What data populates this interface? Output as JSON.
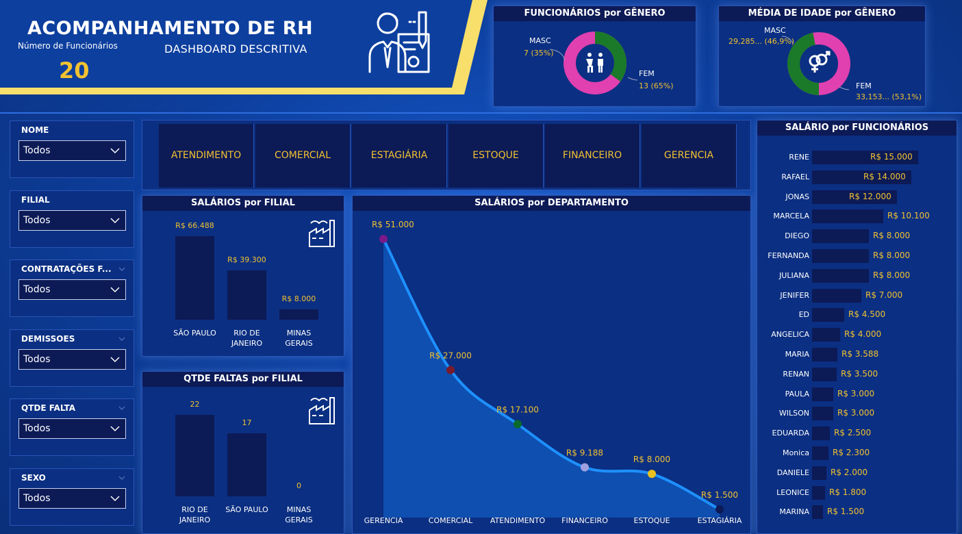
{
  "header": {
    "title": "ACOMPANHAMENTO DE RH",
    "subtitle": "DASHBOARD DESCRITIVA",
    "kpi_label": "Número de Funcionários",
    "kpi_value": "20"
  },
  "gender_count": {
    "title": "FUNCIONÁRIOS por GÊNERO",
    "masc_label": "MASC",
    "masc_value": "7 (35%)",
    "fem_label": "FEM",
    "fem_value": "13 (65%)",
    "masc_share": 0.35,
    "fem_share": 0.65
  },
  "age_gender": {
    "title": "MÉDIA DE IDADE por GÊNERO",
    "masc_label": "MASC",
    "masc_value": "29,285... (46,9%)",
    "fem_label": "FEM",
    "fem_value": "33,153... (53,1%)",
    "masc_share": 0.469,
    "fem_share": 0.531
  },
  "filters": [
    {
      "label": "NOME",
      "value": "Todos",
      "has_chevron": false
    },
    {
      "label": "FILIAL",
      "value": "Todos",
      "has_chevron": false
    },
    {
      "label": "CONTRATAÇÕES F...",
      "value": "Todos",
      "has_chevron": true
    },
    {
      "label": "DEMISSOES",
      "value": "Todos",
      "has_chevron": true
    },
    {
      "label": "QTDE FALTA",
      "value": "Todos",
      "has_chevron": true
    },
    {
      "label": "SEXO",
      "value": "Todos",
      "has_chevron": true
    }
  ],
  "departments": [
    "ATENDIMENTO",
    "COMERCIAL",
    "ESTAGIÁRIA",
    "ESTOQUE",
    "FINANCEIRO",
    "GERENCIA"
  ],
  "colors": {
    "masc": "#1a7a2a",
    "fem": "#e040b0",
    "gold": "#f2c230",
    "bar": "#0c1a56",
    "line": "#1e90ff"
  },
  "chart_data": [
    {
      "type": "bar",
      "title": "SALÁRIOS por FILIAL",
      "categories": [
        "SÃO PAULO",
        "RIO DE JANEIRO",
        "MINAS GERAIS"
      ],
      "values": [
        66488,
        39300,
        8000
      ],
      "labels": [
        "R$ 66.488",
        "R$ 39.300",
        "R$ 8.000"
      ],
      "ylim": [
        0,
        66488
      ]
    },
    {
      "type": "bar",
      "title": "QTDE FALTAS por FILIAL",
      "categories": [
        "RIO DE JANEIRO",
        "SÃO PAULO",
        "MINAS GERAIS"
      ],
      "values": [
        22,
        17,
        0
      ],
      "labels": [
        "22",
        "17",
        "0"
      ],
      "ylim": [
        0,
        22
      ]
    },
    {
      "type": "area",
      "title": "SALÁRIOS por DEPARTAMENTO",
      "categories": [
        "GERENCIA",
        "COMERCIAL",
        "ATENDIMENTO",
        "FINANCEIRO",
        "ESTOQUE",
        "ESTAGIÁRIA"
      ],
      "values": [
        51000,
        27000,
        17100,
        9188,
        8000,
        1500
      ],
      "labels": [
        "R$ 51.000",
        "R$ 27.000",
        "R$ 17.100",
        "R$ 9.188",
        "R$ 8.000",
        "R$ 1.500"
      ],
      "point_colors": [
        "#7a1a8a",
        "#7a1a2a",
        "#0a6a2a",
        "#a0a0e0",
        "#e8c020",
        "#0c1a56"
      ],
      "ylim": [
        0,
        51000
      ]
    },
    {
      "type": "bar",
      "title": "SALÁRIO por FUNCIONÁRIOS",
      "orientation": "horizontal",
      "categories": [
        "RENE",
        "RAFAEL",
        "JONAS",
        "MARCELA",
        "DIEGO",
        "FERNANDA",
        "JULIANA",
        "JENIFER",
        "ED",
        "ANGELICA",
        "MARIA",
        "RENAN",
        "PAULA",
        "WILSON",
        "EDUARDA",
        "Monica",
        "DANIELE",
        "LEONICE",
        "MARINA"
      ],
      "values": [
        15000,
        14000,
        12000,
        10100,
        8000,
        8000,
        8000,
        7000,
        4500,
        4000,
        3588,
        3500,
        3000,
        3000,
        2500,
        2300,
        2000,
        1800,
        1500
      ],
      "labels": [
        "R$ 15.000",
        "R$ 14.000",
        "R$ 12.000",
        "R$ 10.100",
        "R$ 8.000",
        "R$ 8.000",
        "R$ 8.000",
        "R$ 7.000",
        "R$ 4.500",
        "R$ 4.000",
        "R$ 3.588",
        "R$ 3.500",
        "R$ 3.000",
        "R$ 3.000",
        "R$ 2.500",
        "R$ 2.300",
        "R$ 2.000",
        "R$ 1.800",
        "R$ 1.500"
      ],
      "xlim": [
        0,
        15000
      ]
    }
  ]
}
